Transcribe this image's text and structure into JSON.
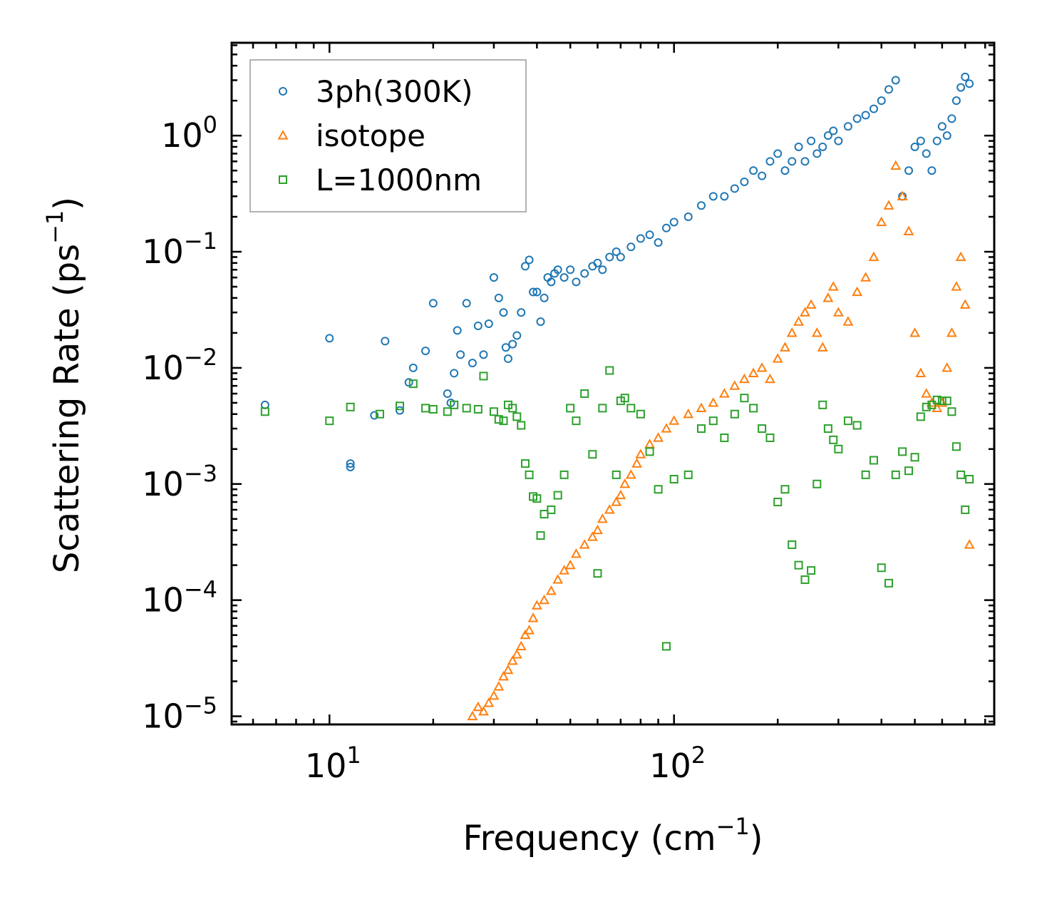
{
  "chart_data": {
    "type": "scatter",
    "title": "",
    "xlabel": "Frequency (cm",
    "xlabel_sup": "−1",
    "xlabel_end": ")",
    "ylabel": "Scattering Rate (ps",
    "ylabel_sup": "−1",
    "ylabel_end": ")",
    "xscale": "log",
    "yscale": "log",
    "xlim": [
      5.2,
      850
    ],
    "ylim": [
      8.5e-06,
      6.3
    ],
    "x_ticks": [
      {
        "value": 10,
        "base": "10",
        "exp": "1"
      },
      {
        "value": 100,
        "base": "10",
        "exp": "2"
      }
    ],
    "y_ticks": [
      {
        "value": 1,
        "base": "10",
        "exp": "0"
      },
      {
        "value": 0.1,
        "base": "10",
        "exp": "−1"
      },
      {
        "value": 0.01,
        "base": "10",
        "exp": "−2"
      },
      {
        "value": 0.001,
        "base": "10",
        "exp": "−3"
      },
      {
        "value": 0.0001,
        "base": "10",
        "exp": "−4"
      },
      {
        "value": 1e-05,
        "base": "10",
        "exp": "−5"
      }
    ],
    "legend_position": "top-left",
    "series": [
      {
        "name": "3ph(300K)",
        "marker": "circle",
        "color": "#1f77b4",
        "x": [
          6.5,
          10,
          11.5,
          11.5,
          13.5,
          14.5,
          16,
          17,
          17.5,
          19,
          20,
          22,
          22.5,
          23,
          23.5,
          24,
          25,
          26,
          27,
          28,
          29,
          30,
          31,
          32,
          32.5,
          33,
          34,
          35,
          36,
          37,
          38,
          39,
          40,
          41,
          42,
          43,
          44,
          45,
          46,
          48,
          50,
          52,
          55,
          58,
          60,
          62,
          65,
          68,
          70,
          75,
          80,
          85,
          90,
          95,
          100,
          110,
          120,
          130,
          140,
          150,
          160,
          170,
          180,
          190,
          200,
          210,
          220,
          230,
          240,
          250,
          260,
          270,
          280,
          290,
          300,
          320,
          340,
          360,
          380,
          400,
          420,
          440,
          460,
          480,
          500,
          520,
          540,
          560,
          580,
          600,
          620,
          640,
          660,
          680,
          700,
          720
        ],
        "y": [
          0.0048,
          0.018,
          0.0015,
          0.0014,
          0.0039,
          0.017,
          0.0043,
          0.0075,
          0.01,
          0.014,
          0.036,
          0.006,
          0.005,
          0.009,
          0.021,
          0.013,
          0.036,
          0.011,
          0.023,
          0.013,
          0.024,
          0.06,
          0.04,
          0.03,
          0.015,
          0.012,
          0.016,
          0.019,
          0.03,
          0.075,
          0.085,
          0.045,
          0.045,
          0.025,
          0.04,
          0.06,
          0.055,
          0.065,
          0.07,
          0.06,
          0.07,
          0.055,
          0.065,
          0.075,
          0.08,
          0.07,
          0.09,
          0.1,
          0.09,
          0.11,
          0.13,
          0.14,
          0.12,
          0.16,
          0.18,
          0.2,
          0.25,
          0.3,
          0.3,
          0.35,
          0.4,
          0.5,
          0.45,
          0.6,
          0.7,
          0.5,
          0.6,
          0.8,
          0.6,
          0.9,
          0.7,
          0.8,
          1.0,
          1.1,
          0.9,
          1.2,
          1.4,
          1.5,
          1.7,
          2.0,
          2.5,
          3.0,
          0.3,
          0.5,
          0.8,
          0.9,
          0.7,
          0.5,
          0.9,
          1.2,
          1.0,
          1.4,
          2.0,
          2.6,
          3.2,
          2.8
        ]
      },
      {
        "name": "isotope",
        "marker": "triangle",
        "color": "#ff7f0e",
        "x": [
          26,
          27,
          28,
          29,
          30,
          31,
          32,
          33,
          34,
          35,
          36,
          37,
          38,
          39,
          40,
          42,
          44,
          46,
          48,
          50,
          52,
          55,
          58,
          60,
          62,
          65,
          68,
          70,
          72,
          75,
          78,
          80,
          85,
          90,
          95,
          100,
          110,
          120,
          130,
          140,
          150,
          160,
          170,
          180,
          190,
          200,
          210,
          220,
          230,
          240,
          250,
          260,
          270,
          280,
          290,
          300,
          320,
          340,
          360,
          380,
          400,
          420,
          440,
          460,
          480,
          500,
          520,
          540,
          560,
          580,
          600,
          620,
          640,
          660,
          680,
          700,
          720
        ],
        "y": [
          1e-05,
          1.2e-05,
          1.1e-05,
          1.3e-05,
          1.5e-05,
          1.8e-05,
          2.2e-05,
          2.5e-05,
          3e-05,
          3.4e-05,
          4e-05,
          5e-05,
          5.5e-05,
          7e-05,
          9e-05,
          0.0001,
          0.00012,
          0.00015,
          0.00018,
          0.0002,
          0.00025,
          0.0003,
          0.00035,
          0.0004,
          0.0005,
          0.0006,
          0.0007,
          0.0008,
          0.001,
          0.0012,
          0.0015,
          0.0018,
          0.0022,
          0.0025,
          0.003,
          0.0035,
          0.004,
          0.0045,
          0.005,
          0.006,
          0.007,
          0.008,
          0.009,
          0.01,
          0.008,
          0.012,
          0.015,
          0.02,
          0.025,
          0.03,
          0.035,
          0.02,
          0.015,
          0.04,
          0.05,
          0.03,
          0.025,
          0.045,
          0.06,
          0.09,
          0.18,
          0.25,
          0.55,
          0.3,
          0.15,
          0.02,
          0.009,
          0.006,
          0.005,
          0.0045,
          0.005,
          0.01,
          0.02,
          0.05,
          0.09,
          0.035,
          0.0003
        ]
      },
      {
        "name": "L=1000nm",
        "marker": "square",
        "color": "#2ca02c",
        "x": [
          6.5,
          10,
          11.5,
          14,
          16,
          17.5,
          19,
          20,
          22,
          23,
          25,
          27,
          28,
          30,
          31,
          32,
          33,
          34,
          35,
          36,
          37,
          38,
          39,
          40,
          41,
          42,
          44,
          46,
          48,
          50,
          52,
          55,
          58,
          60,
          62,
          65,
          68,
          70,
          72,
          75,
          80,
          85,
          90,
          95,
          100,
          110,
          120,
          130,
          140,
          150,
          160,
          170,
          180,
          190,
          200,
          210,
          220,
          230,
          240,
          250,
          260,
          270,
          280,
          290,
          300,
          320,
          340,
          360,
          380,
          400,
          420,
          440,
          460,
          480,
          500,
          520,
          540,
          560,
          580,
          600,
          620,
          640,
          660,
          680,
          700,
          720
        ],
        "y": [
          0.0042,
          0.0035,
          0.0046,
          0.004,
          0.0047,
          0.0073,
          0.0045,
          0.0044,
          0.0042,
          0.0048,
          0.0045,
          0.0044,
          0.0085,
          0.0042,
          0.0036,
          0.0035,
          0.0048,
          0.0045,
          0.0038,
          0.0032,
          0.0015,
          0.0012,
          0.00078,
          0.00075,
          0.00036,
          0.00055,
          0.0006,
          0.0008,
          0.0012,
          0.0045,
          0.0035,
          0.006,
          0.0018,
          0.00017,
          0.0045,
          0.0095,
          0.0012,
          0.0052,
          0.0055,
          0.0045,
          0.004,
          0.0019,
          0.0009,
          4e-05,
          0.0011,
          0.0012,
          0.003,
          0.0035,
          0.0025,
          0.004,
          0.0055,
          0.0045,
          0.003,
          0.0025,
          0.0007,
          0.0009,
          0.0003,
          0.0002,
          0.00015,
          0.00018,
          0.001,
          0.0048,
          0.003,
          0.0024,
          0.002,
          0.0035,
          0.0032,
          0.0012,
          0.0016,
          0.00019,
          0.00014,
          0.0012,
          0.0019,
          0.0013,
          0.0017,
          0.0038,
          0.0046,
          0.0048,
          0.0053,
          0.0052,
          0.0052,
          0.0042,
          0.0021,
          0.0012,
          0.0006,
          0.0011
        ]
      }
    ]
  }
}
